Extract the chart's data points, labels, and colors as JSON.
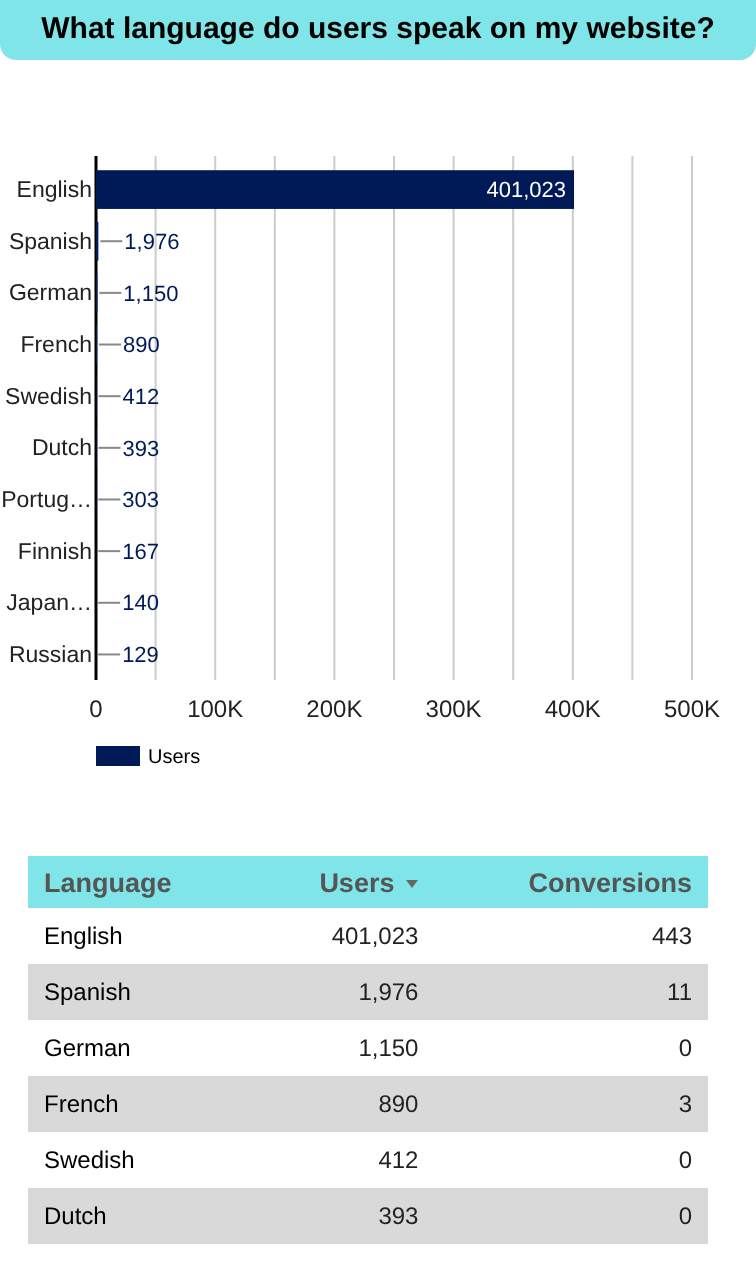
{
  "chart_data": [
    {
      "type": "bar",
      "orientation": "horizontal",
      "title": "What language do users speak on my website?",
      "categories": [
        "English",
        "Spanish",
        "German",
        "French",
        "Swedish",
        "Dutch",
        "Portug…",
        "Finnish",
        "Japan…",
        "Russian"
      ],
      "series": [
        {
          "name": "Users",
          "color": "#001a57",
          "values": [
            401023,
            1976,
            1150,
            890,
            412,
            393,
            303,
            167,
            140,
            129
          ],
          "value_labels": [
            "401,023",
            "1,976",
            "1,150",
            "890",
            "412",
            "393",
            "303",
            "167",
            "140",
            "129"
          ]
        }
      ],
      "xlim": [
        0,
        500000
      ],
      "xticks": [
        0,
        {
          "value": 50000,
          "label": null
        },
        {
          "value": 100000,
          "label": "100K"
        },
        {
          "value": 150000,
          "label": null
        },
        {
          "value": 200000,
          "label": "200K"
        },
        {
          "value": 250000,
          "label": null
        },
        {
          "value": 300000,
          "label": "300K"
        },
        {
          "value": 350000,
          "label": null
        },
        {
          "value": 400000,
          "label": "400K"
        },
        {
          "value": 450000,
          "label": null
        },
        {
          "value": 500000,
          "label": "500K"
        }
      ],
      "grid": "x",
      "legend": "bottom"
    },
    {
      "type": "other",
      "xlabel": "Language",
      "categories": [
        "English",
        "Spanish",
        "German",
        "French",
        "Swedish",
        "Dutch"
      ],
      "series": [
        {
          "name": "Users",
          "values": [
            401023,
            1976,
            1150,
            890,
            412,
            393
          ],
          "value_labels": [
            "401,023",
            "1,976",
            "1,150",
            "890",
            "412",
            "393"
          ]
        },
        {
          "name": "Conversions",
          "values": [
            443,
            11,
            0,
            3,
            0,
            0
          ],
          "value_labels": [
            "443",
            "11",
            "0",
            "3",
            "0",
            "0"
          ]
        }
      ]
    }
  ]
}
